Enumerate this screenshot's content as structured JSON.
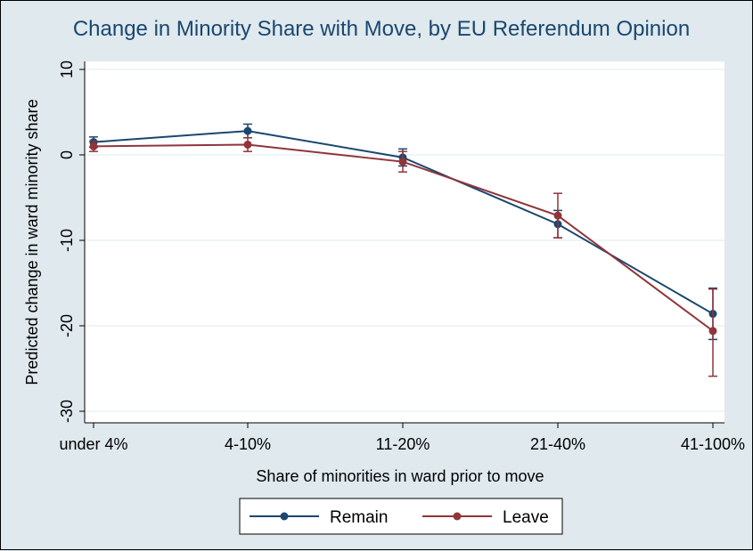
{
  "chart_data": {
    "type": "line",
    "title": "Change in Minority Share with Move, by EU Referendum Opinion",
    "xlabel": "Share of minorities in ward prior to move",
    "ylabel": "Predicted change in ward minority share",
    "categories": [
      "under 4%",
      "4-10%",
      "11-20%",
      "21-40%",
      "41-100%"
    ],
    "ylim": [
      -30,
      10
    ],
    "yticks": [
      10,
      0,
      -10,
      -20,
      -30
    ],
    "grid": true,
    "legend_position": "bottom",
    "series": [
      {
        "name": "Remain",
        "color": "#1a476f",
        "values": [
          1.5,
          2.8,
          -0.3,
          -8.1,
          -18.6
        ],
        "ci_low": [
          0.9,
          2.0,
          -1.3,
          -9.7,
          -21.6
        ],
        "ci_high": [
          2.1,
          3.6,
          0.7,
          -6.5,
          -15.6
        ]
      },
      {
        "name": "Leave",
        "color": "#90353b",
        "values": [
          1.0,
          1.2,
          -0.8,
          -7.1,
          -20.6
        ],
        "ci_low": [
          0.4,
          0.4,
          -2.0,
          -9.7,
          -25.9
        ],
        "ci_high": [
          1.6,
          2.0,
          0.4,
          -4.5,
          -15.7
        ]
      }
    ]
  }
}
